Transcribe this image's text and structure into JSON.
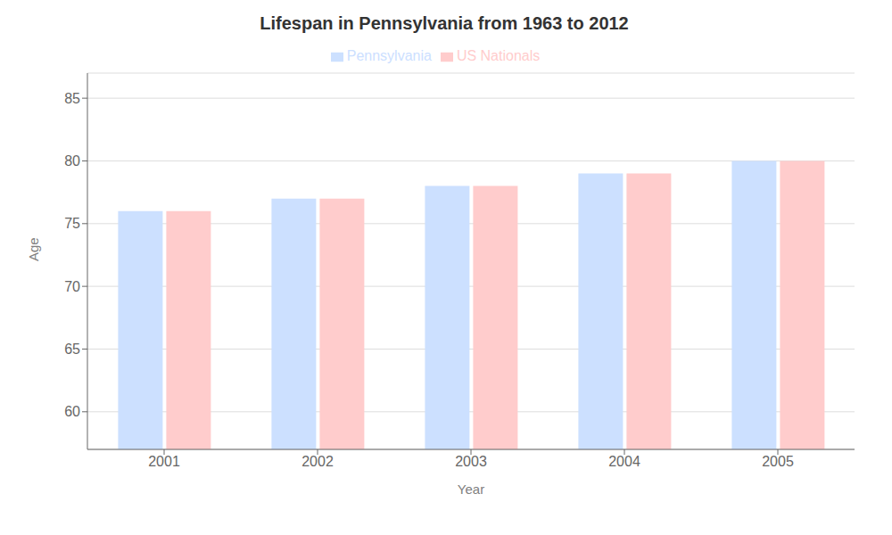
{
  "chart_data": {
    "type": "bar",
    "title": "Lifespan in Pennsylvania from 1963 to 2012",
    "x_label": "Year",
    "y_label": "Age",
    "categories": [
      "2001",
      "2002",
      "2003",
      "2004",
      "2005"
    ],
    "series": [
      {
        "name": "Pennsylvania",
        "color": "#cce0ff",
        "values": [
          76,
          77,
          78,
          79,
          80
        ]
      },
      {
        "name": "US Nationals",
        "color": "#ffcccc",
        "values": [
          76,
          77,
          78,
          79,
          80
        ]
      }
    ],
    "ylim": [
      57,
      87
    ],
    "yticks": [
      60,
      65,
      70,
      75,
      80,
      85
    ],
    "grid": true,
    "legend": "top"
  }
}
